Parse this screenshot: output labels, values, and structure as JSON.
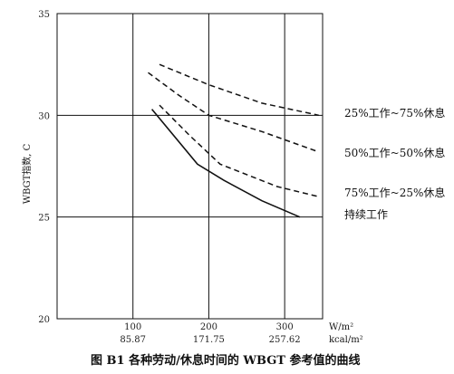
{
  "chart_data": {
    "type": "line",
    "title": "",
    "caption": "图 B1   各种劳动/休息时间的 WBGT 参考值的曲线",
    "ylabel": "WBGT指数, C",
    "xlabel_top": "W/m²",
    "xlabel_bottom": "kcal/m²",
    "xlim": [
      0,
      350
    ],
    "ylim": [
      20,
      35
    ],
    "x_ticks": [
      100,
      200,
      300
    ],
    "x_ticks_kcal": [
      "85.87",
      "171.75",
      "257.62"
    ],
    "y_ticks": [
      20,
      25,
      30,
      35
    ],
    "grid": true,
    "series": [
      {
        "name": "25%工作~75%休息",
        "style": "dashed",
        "x": [
          135,
          200,
          270,
          345
        ],
        "y": [
          32.5,
          31.5,
          30.6,
          30.0
        ]
      },
      {
        "name": "50%工作~50%休息",
        "style": "dashed",
        "x": [
          120,
          160,
          200,
          270,
          345
        ],
        "y": [
          32.1,
          31.0,
          30.0,
          29.2,
          28.2
        ]
      },
      {
        "name": "75%工作~25%休息",
        "style": "dashed",
        "x": [
          135,
          175,
          215,
          290,
          345
        ],
        "y": [
          30.5,
          29.0,
          27.6,
          26.5,
          26.0
        ]
      },
      {
        "name": "持续工作",
        "style": "solid",
        "x": [
          125,
          185,
          220,
          270,
          320
        ],
        "y": [
          30.3,
          27.6,
          26.8,
          25.8,
          25.0
        ]
      }
    ]
  }
}
